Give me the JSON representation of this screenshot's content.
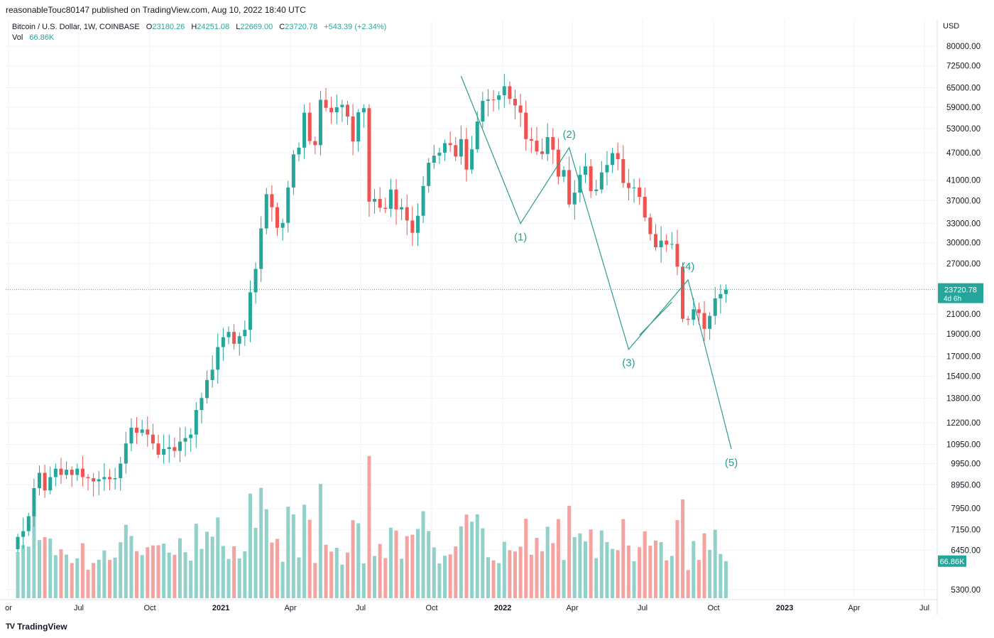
{
  "header": {
    "published_line": "reasonableTouc80147 published on TradingView.com, Aug 10, 2022 18:40 UTC"
  },
  "legend": {
    "symbol": "Bitcoin / U.S. Dollar, 1W, COINBASE",
    "o_label": "O",
    "o_value": "23180.26",
    "h_label": "H",
    "h_value": "24251.08",
    "l_label": "L",
    "l_value": "22669.00",
    "c_label": "C",
    "c_value": "23720.78",
    "change": "+543.39 (+2.34%)",
    "vol_label": "Vol",
    "vol_value": "66.86K"
  },
  "branding": {
    "logo_text": "TV",
    "name": "TradingView"
  },
  "colors": {
    "up": "#26a69a",
    "down": "#ef5350",
    "up_vol": "#92d1c9",
    "down_vol": "#f5a3a1",
    "wave": "#2a9d8f",
    "grid": "#f0f3fa",
    "axis_text": "#131722"
  },
  "chart_data": {
    "type": "candlestick",
    "symbol": "Bitcoin / U.S. Dollar",
    "interval": "1W",
    "exchange": "COINBASE",
    "y_axis_unit": "USD",
    "y_scale": "log",
    "ylim": [
      5000,
      90000
    ],
    "x_range": [
      "2020-03-30",
      "2023-07-31"
    ],
    "y_ticks": [
      80000,
      72500,
      65000,
      59000,
      53000,
      47000,
      41000,
      37000,
      33000,
      30000,
      27000,
      23720.78,
      21000,
      19000,
      17000,
      15400,
      13800,
      12200,
      10950,
      9950,
      8950,
      7950,
      7150,
      6450,
      5300
    ],
    "y_tick_labels": [
      "80000.00",
      "72500.00",
      "65000.00",
      "59000.00",
      "53000.00",
      "47000.00",
      "41000.00",
      "37000.00",
      "33000.00",
      "30000.00",
      "27000.00",
      "",
      "21000.00",
      "19000.00",
      "17000.00",
      "15400.00",
      "13800.00",
      "12200.00",
      "10950.00",
      "9950.00",
      "8950.00",
      "7950.00",
      "7150.00",
      "6450.00",
      "5300.00"
    ],
    "x_ticks": [
      {
        "date": "2020-04-01",
        "label": "or",
        "bold": false
      },
      {
        "date": "2020-07-01",
        "label": "Jul",
        "bold": false
      },
      {
        "date": "2020-10-01",
        "label": "Oct",
        "bold": false
      },
      {
        "date": "2021-01-01",
        "label": "2021",
        "bold": true
      },
      {
        "date": "2021-04-01",
        "label": "Apr",
        "bold": false
      },
      {
        "date": "2021-07-01",
        "label": "Jul",
        "bold": false
      },
      {
        "date": "2021-10-01",
        "label": "Oct",
        "bold": false
      },
      {
        "date": "2022-01-01",
        "label": "2022",
        "bold": true
      },
      {
        "date": "2022-04-01",
        "label": "Apr",
        "bold": false
      },
      {
        "date": "2022-07-01",
        "label": "Jul",
        "bold": false
      },
      {
        "date": "2022-10-01",
        "label": "Oct",
        "bold": false
      },
      {
        "date": "2023-01-01",
        "label": "2023",
        "bold": true
      },
      {
        "date": "2023-04-01",
        "label": "Apr",
        "bold": false
      },
      {
        "date": "2023-07-01",
        "label": "Jul",
        "bold": false
      }
    ],
    "candle_start": "2020-04-13",
    "closes": [
      6900,
      7100,
      7650,
      8800,
      9500,
      8700,
      9300,
      9700,
      9400,
      9650,
      9400,
      9700,
      9300,
      9250,
      9100,
      9200,
      9300,
      9200,
      9250,
      9950,
      11000,
      11900,
      11600,
      11800,
      11500,
      11000,
      10400,
      10700,
      10800,
      10600,
      11100,
      11300,
      11500,
      13000,
      13800,
      15100,
      15900,
      17800,
      18700,
      19200,
      18100,
      18800,
      19400,
      23400,
      26300,
      32200,
      38200,
      35800,
      32300,
      33100,
      39500,
      46600,
      48200,
      57400,
      49800,
      48800,
      61200,
      58800,
      57500,
      59000,
      59700,
      56300,
      49700,
      57500,
      58700,
      36800,
      37300,
      35700,
      35500,
      39100,
      35400,
      35800,
      33500,
      31500,
      34300,
      39800,
      44700,
      46300,
      47000,
      49300,
      48800,
      46100,
      50300,
      43200,
      47800,
      54900,
      60900,
      61300,
      61200,
      62600,
      65500,
      61500,
      59500,
      57400,
      50300,
      49900,
      47300,
      46700,
      50800,
      47700,
      41700,
      43100,
      36300,
      38500,
      42100,
      43900,
      38800,
      39100,
      42600,
      44200,
      46900,
      45500,
      40400,
      39400,
      39500,
      37700,
      34000,
      31300,
      29300,
      30300,
      29700,
      29800,
      26600,
      20500,
      20400,
      21500,
      21100,
      19500,
      20800,
      22700,
      23200,
      23720.78
    ],
    "volume_unit": "K",
    "last_volume": 66.86,
    "waves": {
      "points": [
        {
          "label": "",
          "date": "2021-11-08",
          "price": 68900
        },
        {
          "label": "(1)",
          "date": "2022-01-24",
          "price": 33000
        },
        {
          "label": "(2)",
          "date": "2022-03-28",
          "price": 48200
        },
        {
          "label": "(3)",
          "date": "2022-06-13",
          "price": 17600
        },
        {
          "label": "(4)",
          "date": "2022-08-29",
          "price": 24900
        },
        {
          "label": "(5)",
          "date": "2022-10-24",
          "price": 10700
        }
      ],
      "ref_line": {
        "from_date": "2022-06-27",
        "from_price": 18900,
        "to_date": "2022-08-08",
        "to_price": 22300
      }
    },
    "last_price_label": "23720.78",
    "countdown": "4d 6h"
  }
}
